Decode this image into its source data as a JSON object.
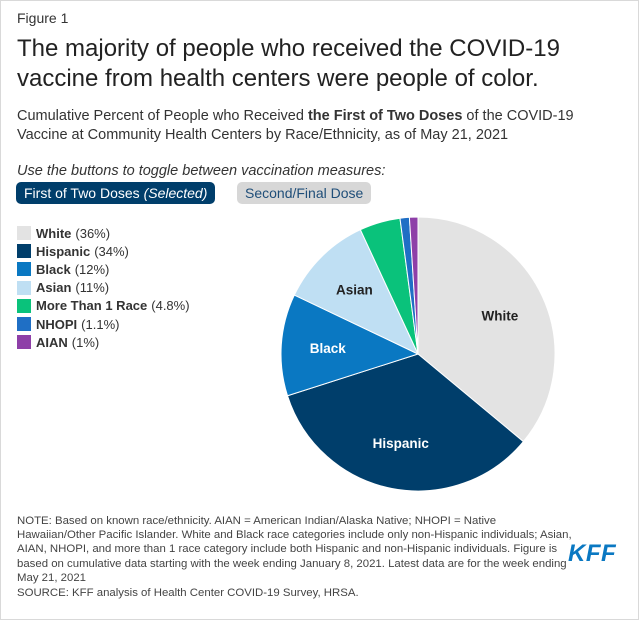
{
  "figure_label": "Figure 1",
  "title": "The majority of people who received the COVID-19 vaccine from health centers were people of color.",
  "subtitle": {
    "prefix": "Cumulative Percent of People who Received ",
    "bold": "the First of Two Doses",
    "suffix": " of the COVID-19 Vaccine at Community Health Centers by Race/Ethnicity, as of May 21, 2021"
  },
  "toggle": {
    "instruction": "Use the buttons to toggle between vaccination measures:",
    "selected_label": "First of Two Doses",
    "selected_suffix": "(Selected)",
    "other_label": "Second/Final Dose"
  },
  "chart_data": {
    "type": "pie",
    "categories": [
      "White",
      "Hispanic",
      "Black",
      "Asian",
      "More Than 1 Race",
      "NHOPI",
      "AIAN"
    ],
    "values": [
      36,
      34,
      12,
      11,
      4.8,
      1.1,
      1
    ],
    "value_labels": [
      "(36%)",
      "(34%)",
      "(12%)",
      "(11%)",
      "(4.8%)",
      "(1.1%)",
      "(1%)"
    ],
    "colors": [
      "#e3e3e3",
      "#003e6b",
      "#0a78c2",
      "#bfdff3",
      "#0ac27b",
      "#1f6fc5",
      "#8e3fa8"
    ],
    "slice_labels": [
      "White",
      "Hispanic",
      "Black",
      "Asian",
      "",
      "",
      ""
    ],
    "slice_label_colors": [
      "#222222",
      "#ffffff",
      "#ffffff",
      "#222222",
      "",
      "",
      ""
    ],
    "legend_placement": "left"
  },
  "note": "NOTE: Based on known race/ethnicity. AIAN = American Indian/Alaska Native; NHOPI = Native Hawaiian/Other Pacific Islander. White and Black race categories include only non-Hispanic individuals; Asian, AIAN, NHOPI, and more than 1 race category include both Hispanic and non-Hispanic individuals. Figure is based on cumulative data starting with the week ending January 8, 2021. Latest data are for the week ending May 21, 2021",
  "source": "SOURCE: KFF analysis of Health Center COVID-19 Survey, HRSA.",
  "logo_text": "KFF"
}
